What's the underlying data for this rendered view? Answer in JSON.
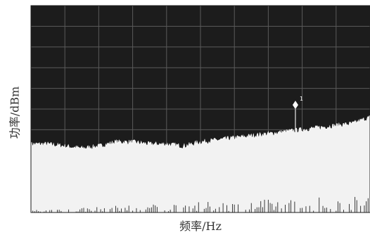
{
  "chart_data": {
    "type": "area",
    "title": "",
    "xlabel": "频率/Hz",
    "ylabel": "功率/dBm",
    "grid": true,
    "x_divisions": 10,
    "y_divisions": 10,
    "ylim_fraction": [
      0,
      1
    ],
    "series": [
      {
        "x": [
          0,
          0.05,
          0.1,
          0.15,
          0.2,
          0.25,
          0.3,
          0.35,
          0.4,
          0.45,
          0.5,
          0.55,
          0.6,
          0.65,
          0.7,
          0.75,
          0.8,
          0.85,
          0.9,
          0.95,
          1.0
        ],
        "values": [
          0.33,
          0.33,
          0.32,
          0.31,
          0.32,
          0.34,
          0.34,
          0.33,
          0.33,
          0.32,
          0.34,
          0.35,
          0.36,
          0.37,
          0.38,
          0.39,
          0.4,
          0.41,
          0.42,
          0.43,
          0.46
        ]
      }
    ],
    "markers": [
      {
        "label": "1",
        "x": 0.78,
        "value": 0.52
      }
    ]
  }
}
